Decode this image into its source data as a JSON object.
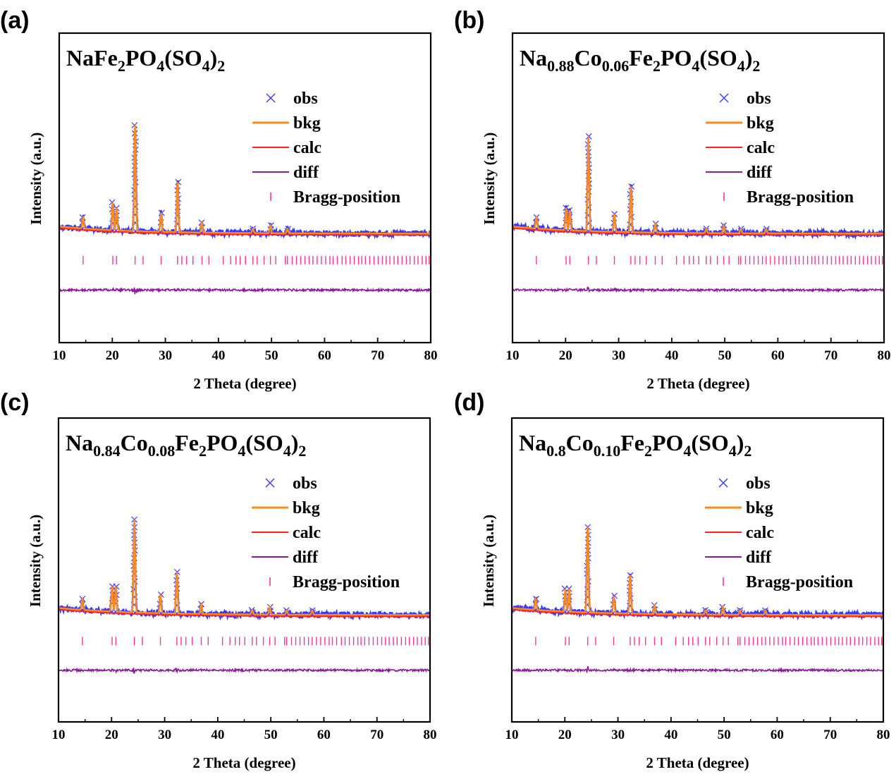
{
  "chart_data": [
    {
      "panel_label": "(a)",
      "title_parts": [
        {
          "t": "NaFe"
        },
        {
          "sub": "2"
        },
        {
          "t": "PO"
        },
        {
          "sub": "4"
        },
        {
          "t": "(SO"
        },
        {
          "sub": "4"
        },
        {
          "t": ")"
        },
        {
          "sub": "2"
        }
      ],
      "type": "line",
      "xlabel": "2 Theta (degree)",
      "ylabel": "Intensity (a.u.)",
      "xlim": [
        10,
        80
      ],
      "xticks": [
        10,
        20,
        30,
        40,
        50,
        60,
        70,
        80
      ],
      "legend": [
        {
          "name": "obs",
          "marker": "cross",
          "color": "#3a3aff"
        },
        {
          "name": "bkg",
          "marker": "line",
          "color": "#ff8c1a"
        },
        {
          "name": "calc",
          "marker": "line",
          "color": "#ff2020"
        },
        {
          "name": "diff",
          "marker": "line",
          "color": "#8b1a9b"
        },
        {
          "name": "Bragg-position",
          "marker": "tick",
          "color": "#ff3399"
        }
      ],
      "legend_position": "top-right",
      "peaks": [
        [
          14.5,
          0.1
        ],
        [
          20.1,
          0.25
        ],
        [
          20.8,
          0.2
        ],
        [
          24.3,
          0.95
        ],
        [
          29.2,
          0.17
        ],
        [
          32.3,
          0.45
        ],
        [
          36.9,
          0.09
        ],
        [
          46.5,
          0.04
        ],
        [
          49.8,
          0.07
        ],
        [
          53.0,
          0.04
        ]
      ]
    },
    {
      "panel_label": "(b)",
      "title_parts": [
        {
          "t": "Na"
        },
        {
          "sub": "0.88"
        },
        {
          "t": "Co"
        },
        {
          "sub": "0.06"
        },
        {
          "t": "Fe"
        },
        {
          "sub": "2"
        },
        {
          "t": "PO"
        },
        {
          "sub": "4"
        },
        {
          "t": "(SO"
        },
        {
          "sub": "4"
        },
        {
          "t": ")"
        },
        {
          "sub": "2"
        }
      ],
      "type": "line",
      "xlabel": "2 Theta (degree)",
      "ylabel": "Intensity (a.u.)",
      "xlim": [
        10,
        80
      ],
      "xticks": [
        10,
        20,
        30,
        40,
        50,
        60,
        70,
        80
      ],
      "legend": [
        {
          "name": "obs",
          "marker": "cross",
          "color": "#3a3aff"
        },
        {
          "name": "bkg",
          "marker": "line",
          "color": "#ff8c1a"
        },
        {
          "name": "calc",
          "marker": "line",
          "color": "#ff2020"
        },
        {
          "name": "diff",
          "marker": "line",
          "color": "#8b1a9b"
        },
        {
          "name": "Bragg-position",
          "marker": "tick",
          "color": "#ff3399"
        }
      ],
      "legend_position": "top-right",
      "peaks": [
        [
          14.5,
          0.1
        ],
        [
          20.1,
          0.2
        ],
        [
          20.8,
          0.18
        ],
        [
          24.3,
          0.85
        ],
        [
          29.2,
          0.16
        ],
        [
          32.3,
          0.41
        ],
        [
          36.9,
          0.08
        ],
        [
          46.5,
          0.04
        ],
        [
          49.8,
          0.07
        ],
        [
          53.0,
          0.04
        ],
        [
          57.8,
          0.04
        ]
      ]
    },
    {
      "panel_label": "(c)",
      "title_parts": [
        {
          "t": "Na"
        },
        {
          "sub": "0.84"
        },
        {
          "t": "Co"
        },
        {
          "sub": "0.08"
        },
        {
          "t": "Fe"
        },
        {
          "sub": "2"
        },
        {
          "t": "PO"
        },
        {
          "sub": "4"
        },
        {
          "t": "(SO"
        },
        {
          "sub": "4"
        },
        {
          "t": ")"
        },
        {
          "sub": "2"
        }
      ],
      "type": "line",
      "xlabel": "2 Theta (degree)",
      "ylabel": "Intensity (a.u.)",
      "xlim": [
        10,
        80
      ],
      "xticks": [
        10,
        20,
        30,
        40,
        50,
        60,
        70,
        80
      ],
      "legend": [
        {
          "name": "obs",
          "marker": "cross",
          "color": "#3a3aff"
        },
        {
          "name": "bkg",
          "marker": "line",
          "color": "#ff8c1a"
        },
        {
          "name": "calc",
          "marker": "line",
          "color": "#ff2020"
        },
        {
          "name": "diff",
          "marker": "line",
          "color": "#8b1a9b"
        },
        {
          "name": "Bragg-position",
          "marker": "tick",
          "color": "#ff3399"
        }
      ],
      "legend_position": "top-right",
      "peaks": [
        [
          14.5,
          0.1
        ],
        [
          20.1,
          0.23
        ],
        [
          20.8,
          0.23
        ],
        [
          24.3,
          0.85
        ],
        [
          29.2,
          0.17
        ],
        [
          32.3,
          0.38
        ],
        [
          36.9,
          0.09
        ],
        [
          46.5,
          0.04
        ],
        [
          49.8,
          0.07
        ],
        [
          53.0,
          0.04
        ],
        [
          57.8,
          0.04
        ]
      ]
    },
    {
      "panel_label": "(d)",
      "title_parts": [
        {
          "t": "Na"
        },
        {
          "sub": "0.8"
        },
        {
          "t": "Co"
        },
        {
          "sub": "0.10"
        },
        {
          "t": "Fe"
        },
        {
          "sub": "2"
        },
        {
          "t": "PO"
        },
        {
          "sub": "4"
        },
        {
          "t": "(SO"
        },
        {
          "sub": "4"
        },
        {
          "t": ")"
        },
        {
          "sub": "2"
        }
      ],
      "type": "line",
      "xlabel": "2 Theta (degree)",
      "ylabel": "Intensity (a.u.)",
      "xlim": [
        10,
        80
      ],
      "xticks": [
        10,
        20,
        30,
        40,
        50,
        60,
        70,
        80
      ],
      "legend": [
        {
          "name": "obs",
          "marker": "cross",
          "color": "#3a3aff"
        },
        {
          "name": "bkg",
          "marker": "line",
          "color": "#ff8c1a"
        },
        {
          "name": "calc",
          "marker": "line",
          "color": "#ff2020"
        },
        {
          "name": "diff",
          "marker": "line",
          "color": "#8b1a9b"
        },
        {
          "name": "Bragg-position",
          "marker": "tick",
          "color": "#ff3399"
        }
      ],
      "legend_position": "top-right",
      "peaks": [
        [
          14.5,
          0.1
        ],
        [
          20.1,
          0.21
        ],
        [
          20.8,
          0.21
        ],
        [
          24.3,
          0.78
        ],
        [
          29.2,
          0.16
        ],
        [
          32.3,
          0.35
        ],
        [
          36.9,
          0.08
        ],
        [
          46.5,
          0.04
        ],
        [
          49.8,
          0.07
        ],
        [
          53.0,
          0.04
        ],
        [
          57.8,
          0.04
        ]
      ]
    }
  ],
  "bragg_positions": [
    14.5,
    20.1,
    20.8,
    24.3,
    25.8,
    29.2,
    32.3,
    33.1,
    34.0,
    35.2,
    36.9,
    38.2,
    40.9,
    42.3,
    43.3,
    44.1,
    45.1,
    46.5,
    47.3,
    48.6,
    49.8,
    50.8,
    52.6,
    53.0,
    53.9,
    54.7,
    55.5,
    56.3,
    57.1,
    57.8,
    58.6,
    59.4,
    60.2,
    61.0,
    61.6,
    62.4,
    63.3,
    64.0,
    64.8,
    65.6,
    66.4,
    67.0,
    67.7,
    68.5,
    69.3,
    70.1,
    70.9,
    71.6,
    72.3,
    73.1,
    73.8,
    74.6,
    75.4,
    76.1,
    76.9,
    77.6,
    78.4,
    79.1,
    79.7
  ]
}
